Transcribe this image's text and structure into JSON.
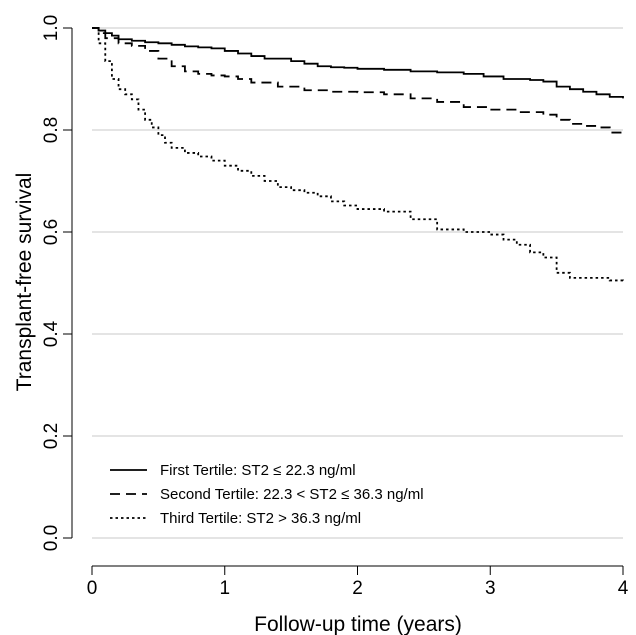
{
  "chart_data": {
    "type": "line",
    "title": "",
    "xlabel": "Follow-up time (years)",
    "ylabel": "Transplant-free survival",
    "xlim": [
      0,
      4
    ],
    "ylim": [
      0,
      1
    ],
    "x_ticks": [
      0,
      1,
      2,
      3,
      4
    ],
    "x_tick_labels": [
      "0",
      "1",
      "2",
      "3",
      "4"
    ],
    "y_ticks": [
      0,
      0.2,
      0.4,
      0.6,
      0.8,
      1.0
    ],
    "y_tick_labels": [
      "0.0",
      "0.2",
      "0.4",
      "0.6",
      "0.8",
      "1.0"
    ],
    "grid": "horizontal",
    "legend_position": "bottom-left",
    "line_color": "#000000",
    "grid_color": "#c8c8c8",
    "series": [
      {
        "name": "First Tertile: ST2 ≤ 22.3 ng/ml",
        "style": "solid",
        "x": [
          0,
          0.05,
          0.1,
          0.15,
          0.2,
          0.3,
          0.4,
          0.5,
          0.6,
          0.7,
          0.8,
          0.9,
          1.0,
          1.1,
          1.2,
          1.3,
          1.4,
          1.5,
          1.6,
          1.7,
          1.8,
          1.9,
          2.0,
          2.2,
          2.4,
          2.6,
          2.8,
          2.95,
          3.1,
          3.3,
          3.4,
          3.5,
          3.6,
          3.7,
          3.8,
          3.9,
          4.0
        ],
        "y": [
          1.0,
          0.995,
          0.99,
          0.985,
          0.978,
          0.975,
          0.972,
          0.97,
          0.967,
          0.964,
          0.962,
          0.96,
          0.955,
          0.95,
          0.945,
          0.94,
          0.94,
          0.935,
          0.93,
          0.925,
          0.923,
          0.922,
          0.92,
          0.918,
          0.915,
          0.913,
          0.91,
          0.905,
          0.9,
          0.898,
          0.895,
          0.885,
          0.88,
          0.875,
          0.87,
          0.865,
          0.862
        ]
      },
      {
        "name": "Second Tertile: 22.3 < ST2 ≤ 36.3 ng/ml",
        "style": "dashed",
        "x": [
          0,
          0.05,
          0.1,
          0.2,
          0.3,
          0.4,
          0.5,
          0.6,
          0.7,
          0.8,
          0.9,
          1.0,
          1.1,
          1.2,
          1.4,
          1.6,
          1.8,
          2.0,
          2.2,
          2.4,
          2.6,
          2.8,
          3.0,
          3.2,
          3.4,
          3.5,
          3.6,
          3.7,
          3.8,
          3.9,
          4.0
        ],
        "y": [
          1.0,
          0.99,
          0.98,
          0.97,
          0.965,
          0.955,
          0.94,
          0.925,
          0.915,
          0.91,
          0.907,
          0.905,
          0.9,
          0.893,
          0.885,
          0.878,
          0.875,
          0.874,
          0.87,
          0.862,
          0.855,
          0.845,
          0.84,
          0.835,
          0.83,
          0.82,
          0.812,
          0.808,
          0.805,
          0.795,
          0.79
        ]
      },
      {
        "name": "Third Tertile: ST2 > 36.3 ng/ml",
        "style": "dotted",
        "x": [
          0,
          0.05,
          0.1,
          0.15,
          0.2,
          0.25,
          0.3,
          0.35,
          0.4,
          0.45,
          0.5,
          0.55,
          0.6,
          0.7,
          0.8,
          0.9,
          1.0,
          1.1,
          1.2,
          1.3,
          1.4,
          1.5,
          1.6,
          1.7,
          1.8,
          1.9,
          2.0,
          2.2,
          2.4,
          2.6,
          2.8,
          3.0,
          3.1,
          3.2,
          3.3,
          3.4,
          3.5,
          3.6,
          3.7,
          3.8,
          3.9,
          4.0
        ],
        "y": [
          1.0,
          0.97,
          0.935,
          0.9,
          0.88,
          0.87,
          0.86,
          0.84,
          0.82,
          0.805,
          0.79,
          0.775,
          0.765,
          0.755,
          0.748,
          0.74,
          0.73,
          0.72,
          0.71,
          0.7,
          0.688,
          0.682,
          0.677,
          0.67,
          0.66,
          0.652,
          0.645,
          0.64,
          0.625,
          0.605,
          0.6,
          0.595,
          0.585,
          0.575,
          0.56,
          0.55,
          0.52,
          0.51,
          0.51,
          0.51,
          0.505,
          0.5
        ]
      }
    ]
  }
}
